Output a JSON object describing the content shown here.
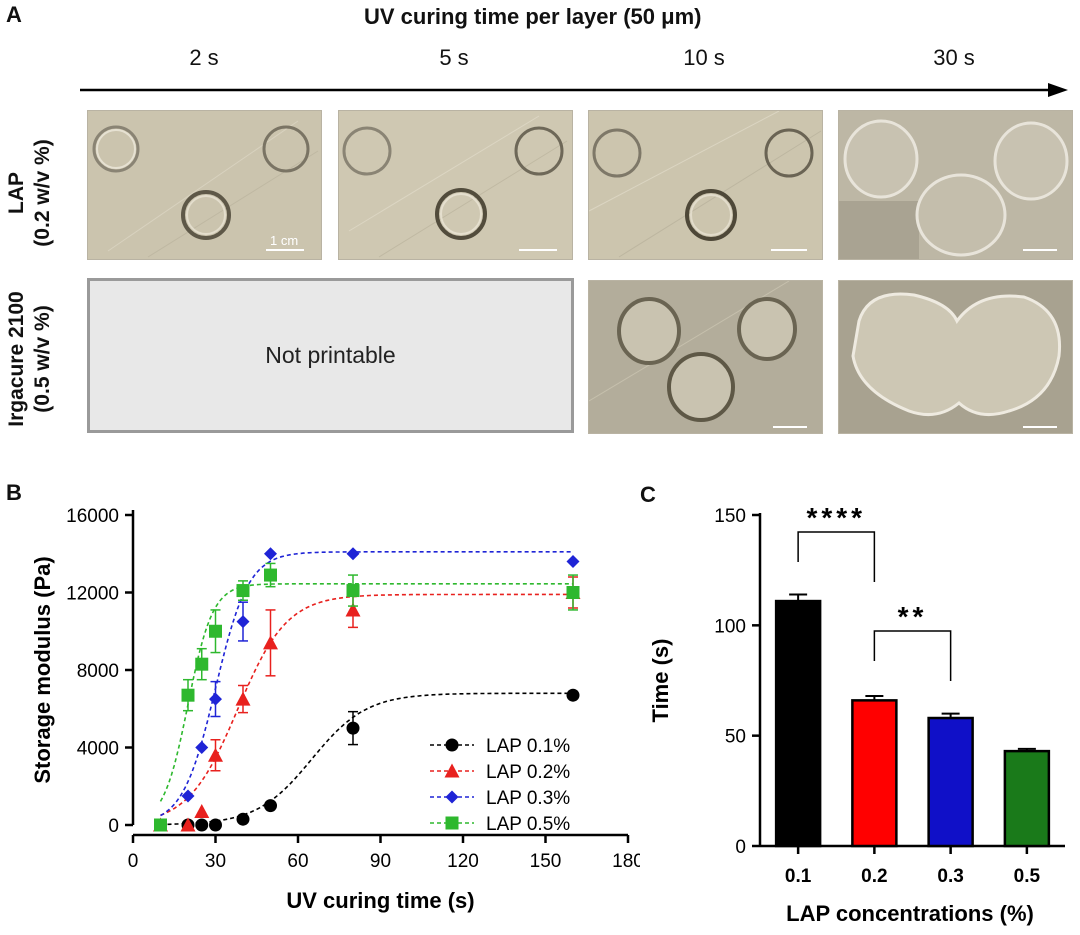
{
  "panelA": {
    "letter": "A",
    "title": "UV curing time per layer (50 μm)",
    "columns": [
      "2 s",
      "5 s",
      "10 s",
      "30 s"
    ],
    "rows": [
      {
        "line1": "LAP",
        "line2": "(0.2 w/v %)"
      },
      {
        "line1": "Irgacure 2100",
        "line2": "(0.5 w/v %)"
      }
    ],
    "not_printable": "Not printable",
    "scale_bar_label": "1 cm",
    "photo_tint": "#c9c2ad"
  },
  "chart_data": [
    {
      "type": "scatter",
      "letter": "B",
      "xlabel": "UV curing time (s)",
      "ylabel": "Storage modulus (Pa)",
      "xlim": [
        0,
        180
      ],
      "ylim": [
        0,
        16000
      ],
      "xticks": [
        0,
        30,
        60,
        90,
        120,
        150,
        180
      ],
      "yticks": [
        0,
        4000,
        8000,
        12000,
        16000
      ],
      "legend_position": "bottom-right",
      "fit_lines": "dashed sigmoid",
      "series": [
        {
          "name": "LAP 0.1%",
          "color": "#000000",
          "marker": "circle",
          "x": [
            10,
            20,
            25,
            30,
            40,
            50,
            80,
            160
          ],
          "y": [
            0,
            0,
            0,
            0,
            300,
            1000,
            5000,
            6700
          ],
          "err": [
            0,
            0,
            0,
            0,
            0,
            0,
            850,
            0
          ],
          "fit": {
            "bottom": 0,
            "top": 6800,
            "x50": 65,
            "slope": 10
          }
        },
        {
          "name": "LAP 0.2%",
          "color": "#e8211e",
          "marker": "triangle",
          "x": [
            10,
            20,
            25,
            30,
            40,
            50,
            80,
            160
          ],
          "y": [
            0,
            0,
            700,
            3600,
            6500,
            9400,
            11100,
            12000
          ],
          "err": [
            0,
            0,
            0,
            800,
            700,
            1700,
            900,
            800
          ],
          "fit": {
            "bottom": 0,
            "top": 11900,
            "x50": 38,
            "slope": 9
          }
        },
        {
          "name": "LAP 0.3%",
          "color": "#1f24d6",
          "marker": "diamond",
          "x": [
            10,
            20,
            25,
            30,
            40,
            50,
            80,
            160
          ],
          "y": [
            0,
            1500,
            4000,
            6500,
            10500,
            14000,
            14000,
            13600
          ],
          "err": [
            0,
            0,
            0,
            900,
            1000,
            0,
            0,
            0
          ],
          "fit": {
            "bottom": 0,
            "top": 14100,
            "x50": 30,
            "slope": 6
          }
        },
        {
          "name": "LAP 0.5%",
          "color": "#2eb82e",
          "marker": "square",
          "x": [
            10,
            20,
            25,
            30,
            40,
            50,
            80,
            160
          ],
          "y": [
            0,
            6700,
            8300,
            10000,
            12100,
            12900,
            12100,
            12000
          ],
          "err": [
            0,
            800,
            800,
            1100,
            500,
            600,
            800,
            900
          ],
          "fit": {
            "bottom": 0,
            "top": 12450,
            "x50": 20,
            "slope": 4.5
          }
        }
      ]
    },
    {
      "type": "bar",
      "letter": "C",
      "xlabel": "LAP concentrations (%)",
      "ylabel": "Time (s)",
      "ylim": [
        0,
        150
      ],
      "yticks": [
        0,
        50,
        100,
        150
      ],
      "categories": [
        "0.1",
        "0.2",
        "0.3",
        "0.5"
      ],
      "values": [
        111,
        66,
        58,
        43
      ],
      "errors": [
        3,
        2,
        2,
        1
      ],
      "colors": [
        "#000000",
        "#ff0000",
        "#1010c8",
        "#1a7a1a"
      ],
      "significance": [
        {
          "from": 0,
          "to": 1,
          "label": "****"
        },
        {
          "from": 1,
          "to": 2,
          "label": "**"
        }
      ]
    }
  ]
}
